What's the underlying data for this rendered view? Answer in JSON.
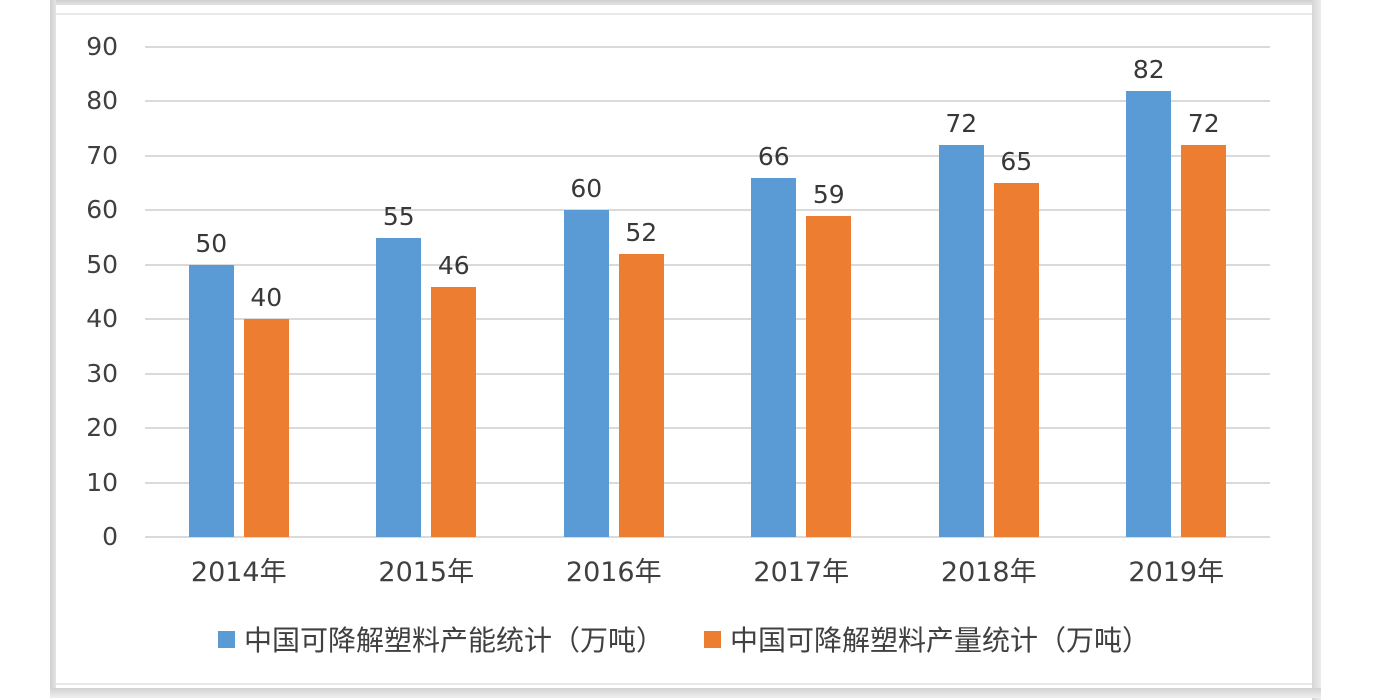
{
  "chart_data": {
    "type": "bar",
    "categories": [
      "2014年",
      "2015年",
      "2016年",
      "2017年",
      "2018年",
      "2019年"
    ],
    "series": [
      {
        "name": "中国可降解塑料产能统计（万吨）",
        "color": "#5B9BD5",
        "values": [
          50,
          55,
          60,
          66,
          72,
          82
        ]
      },
      {
        "name": "中国可降解塑料产量统计（万吨）",
        "color": "#ED7D31",
        "values": [
          40,
          46,
          52,
          59,
          65,
          72
        ]
      }
    ],
    "ylim": [
      0,
      90
    ],
    "yticks": [
      0,
      10,
      20,
      30,
      40,
      50,
      60,
      70,
      80,
      90
    ],
    "grid": "horizontal",
    "legend_position": "bottom",
    "value_labels": true
  },
  "colors": {
    "series1": "#5B9BD5",
    "series2": "#ED7D31",
    "gridline": "#DADADA",
    "axis_text": "#404040",
    "frame": "#D9D9D9",
    "background": "#FFFFFF"
  }
}
